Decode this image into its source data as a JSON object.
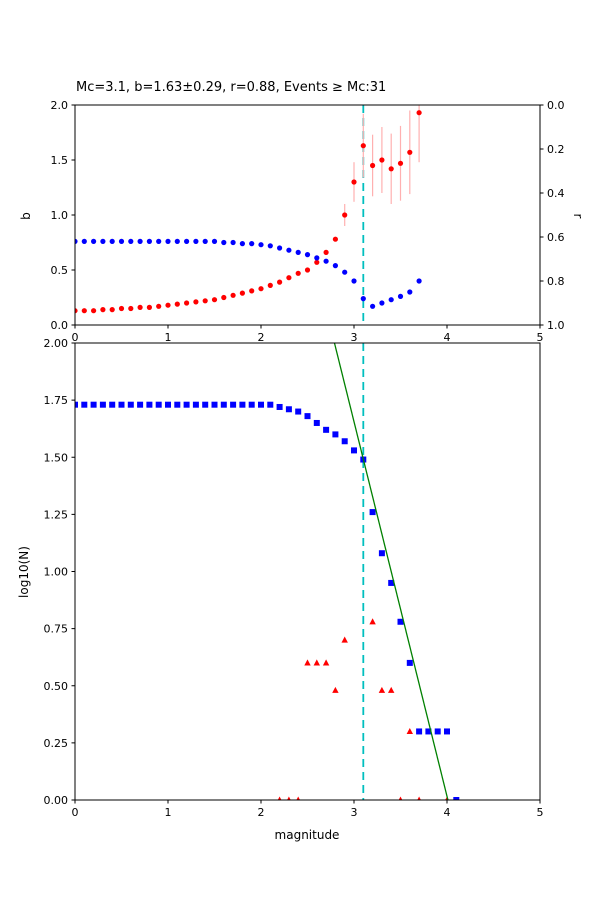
{
  "figure": {
    "title": "Mc=3.1, b=1.63±0.29, r=0.88, Events ≥ Mc:31",
    "xlabel": "magnitude"
  },
  "chart_data": [
    {
      "name": "b-r-vs-cutoff",
      "type": "scatter",
      "title": "Mc=3.1, b=1.63±0.29, r=0.88, Events ≥ Mc:31",
      "xlim": [
        0,
        5
      ],
      "xticks": [
        0,
        1,
        2,
        3,
        4,
        5
      ],
      "left_axis": {
        "label": "b",
        "lim": [
          0.0,
          2.0
        ],
        "ticks": [
          "0.0",
          "0.5",
          "1.0",
          "1.5",
          "2.0"
        ]
      },
      "right_axis": {
        "label": "r",
        "lim": [
          0.0,
          1.0
        ],
        "inverted": true,
        "ticks": [
          "0.0",
          "0.2",
          "0.4",
          "0.6",
          "0.8",
          "1.0"
        ]
      },
      "vline": {
        "x": 3.1,
        "color": "#00bfbf",
        "dash": "8 5"
      },
      "series": [
        {
          "name": "b-value",
          "marker": "circle",
          "color": "#ff0000",
          "errcolor": "#ffb0b0",
          "axis": "left",
          "x": [
            0.0,
            0.1,
            0.2,
            0.3,
            0.4,
            0.5,
            0.6,
            0.7,
            0.8,
            0.9,
            1.0,
            1.1,
            1.2,
            1.3,
            1.4,
            1.5,
            1.6,
            1.7,
            1.8,
            1.9,
            2.0,
            2.1,
            2.2,
            2.3,
            2.4,
            2.5,
            2.6,
            2.7,
            2.8,
            2.9,
            3.0,
            3.1,
            3.2,
            3.3,
            3.4,
            3.5,
            3.6,
            3.7
          ],
          "y": [
            0.13,
            0.13,
            0.13,
            0.14,
            0.14,
            0.15,
            0.15,
            0.16,
            0.16,
            0.17,
            0.18,
            0.19,
            0.2,
            0.21,
            0.22,
            0.23,
            0.25,
            0.27,
            0.29,
            0.31,
            0.33,
            0.36,
            0.39,
            0.43,
            0.47,
            0.5,
            0.57,
            0.66,
            0.78,
            1.0,
            1.3,
            1.63,
            1.45,
            1.5,
            1.42,
            1.47,
            1.57,
            1.93
          ],
          "yerr": [
            0,
            0,
            0,
            0,
            0,
            0,
            0,
            0,
            0,
            0,
            0,
            0,
            0,
            0,
            0,
            0,
            0,
            0,
            0,
            0,
            0,
            0,
            0,
            0,
            0,
            0,
            0,
            0,
            0,
            0.1,
            0.18,
            0.29,
            0.28,
            0.3,
            0.32,
            0.34,
            0.38,
            0.45
          ]
        },
        {
          "name": "correlation-r",
          "marker": "circle",
          "color": "#0000ff",
          "axis": "right",
          "x": [
            0.0,
            0.1,
            0.2,
            0.3,
            0.4,
            0.5,
            0.6,
            0.7,
            0.8,
            0.9,
            1.0,
            1.1,
            1.2,
            1.3,
            1.4,
            1.5,
            1.6,
            1.7,
            1.8,
            1.9,
            2.0,
            2.1,
            2.2,
            2.3,
            2.4,
            2.5,
            2.6,
            2.7,
            2.8,
            2.9,
            3.0,
            3.1,
            3.2,
            3.3,
            3.4,
            3.5,
            3.6,
            3.7
          ],
          "y": [
            0.62,
            0.62,
            0.62,
            0.62,
            0.62,
            0.62,
            0.62,
            0.62,
            0.62,
            0.62,
            0.62,
            0.62,
            0.62,
            0.62,
            0.62,
            0.62,
            0.625,
            0.625,
            0.63,
            0.63,
            0.635,
            0.64,
            0.65,
            0.66,
            0.67,
            0.68,
            0.695,
            0.71,
            0.73,
            0.76,
            0.8,
            0.88,
            0.915,
            0.9,
            0.885,
            0.87,
            0.85,
            0.8
          ]
        }
      ]
    },
    {
      "name": "frequency-magnitude",
      "type": "scatter",
      "xlabel": "magnitude",
      "xlim": [
        0,
        5
      ],
      "xticks": [
        0,
        1,
        2,
        3,
        4,
        5
      ],
      "left_axis": {
        "label": "log10(N)",
        "lim": [
          0.0,
          2.0
        ],
        "ticks": [
          "0.00",
          "0.25",
          "0.50",
          "0.75",
          "1.00",
          "1.25",
          "1.50",
          "1.75",
          "2.00"
        ]
      },
      "vline": {
        "x": 3.1,
        "color": "#00bfbf",
        "dash": "8 5"
      },
      "series": [
        {
          "name": "cumulative-count",
          "marker": "square",
          "color": "#0000ff",
          "axis": "left",
          "x": [
            0.0,
            0.1,
            0.2,
            0.3,
            0.4,
            0.5,
            0.6,
            0.7,
            0.8,
            0.9,
            1.0,
            1.1,
            1.2,
            1.3,
            1.4,
            1.5,
            1.6,
            1.7,
            1.8,
            1.9,
            2.0,
            2.1,
            2.2,
            2.3,
            2.4,
            2.5,
            2.6,
            2.7,
            2.8,
            2.9,
            3.0,
            3.1,
            3.2,
            3.3,
            3.4,
            3.5,
            3.6,
            3.7,
            3.8,
            3.9,
            4.0,
            4.1
          ],
          "y": [
            1.73,
            1.73,
            1.73,
            1.73,
            1.73,
            1.73,
            1.73,
            1.73,
            1.73,
            1.73,
            1.73,
            1.73,
            1.73,
            1.73,
            1.73,
            1.73,
            1.73,
            1.73,
            1.73,
            1.73,
            1.73,
            1.73,
            1.72,
            1.71,
            1.7,
            1.68,
            1.65,
            1.62,
            1.6,
            1.57,
            1.53,
            1.49,
            1.26,
            1.08,
            0.95,
            0.78,
            0.6,
            0.3,
            0.3,
            0.3,
            0.3,
            0.0
          ]
        },
        {
          "name": "bin-count",
          "marker": "triangle",
          "color": "#ff0000",
          "axis": "left",
          "x": [
            2.2,
            2.3,
            2.4,
            2.5,
            2.6,
            2.7,
            2.8,
            2.9,
            3.2,
            3.3,
            3.4,
            3.5,
            3.6,
            3.7,
            4.0
          ],
          "y": [
            0.0,
            0.0,
            0.0,
            0.6,
            0.6,
            0.6,
            0.48,
            0.7,
            0.78,
            0.48,
            0.48,
            0.0,
            0.3,
            0.0,
            0.0
          ]
        },
        {
          "name": "gr-fit-line",
          "marker": "line",
          "color": "#008000",
          "axis": "left",
          "x": [
            2.79,
            4.01
          ],
          "y": [
            2.0,
            0.0
          ]
        }
      ]
    }
  ]
}
